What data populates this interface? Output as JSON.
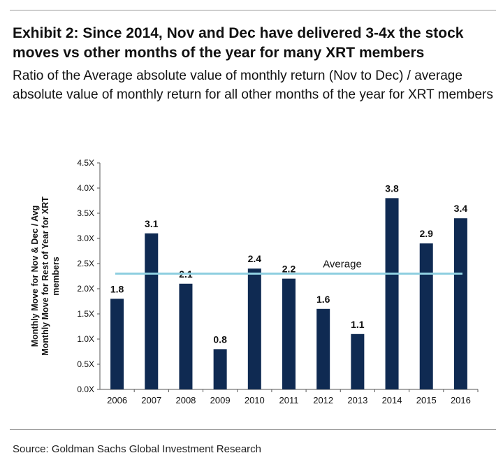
{
  "title": "Exhibit 2: Since 2014, Nov and Dec have delivered 3-4x the stock moves vs other months of the year for many XRT members",
  "subtitle": "Ratio of the Average absolute value of monthly return (Nov to Dec) / average absolute value of monthly return for all other months of the year for XRT members",
  "source": "Source: Goldman Sachs Global Investment Research",
  "colors": {
    "bar": "#0f2a52",
    "average_line": "#8fcfe0"
  },
  "chart_data": {
    "type": "bar",
    "categories": [
      "2006",
      "2007",
      "2008",
      "2009",
      "2010",
      "2011",
      "2012",
      "2013",
      "2014",
      "2015",
      "2016"
    ],
    "values": [
      1.8,
      3.1,
      2.1,
      0.8,
      2.4,
      2.2,
      1.6,
      1.1,
      3.8,
      2.9,
      3.4
    ],
    "data_labels": [
      "1.8",
      "3.1",
      "2.1",
      "0.8",
      "2.4",
      "2.2",
      "1.6",
      "1.1",
      "3.8",
      "2.9",
      "3.4"
    ],
    "ylabel_lines": [
      "Monthly Move for Nov & Dec / Avg",
      "Monthly Move for Rest of Year for XRT",
      "members"
    ],
    "xlabel": "",
    "ylim": [
      0,
      4.5
    ],
    "yticks": [
      0,
      0.5,
      1,
      1.5,
      2,
      2.5,
      3,
      3.5,
      4,
      4.5
    ],
    "ytick_labels": [
      "0.0X",
      "0.5X",
      "1.0X",
      "1.5X",
      "2.0X",
      "2.5X",
      "3.0X",
      "3.5X",
      "4.0X",
      "4.5X"
    ],
    "average": {
      "label": "Average",
      "value": 2.3
    },
    "grid": false,
    "legend": "none"
  }
}
